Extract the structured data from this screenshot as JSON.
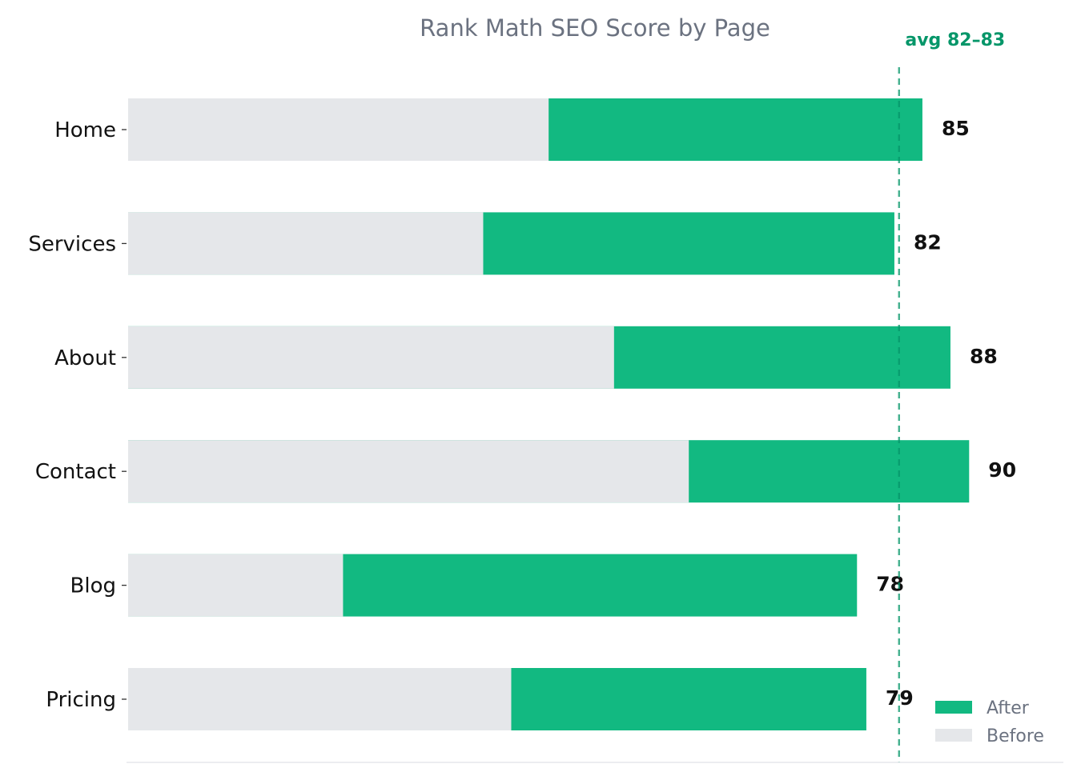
{
  "chart_data": {
    "type": "bar",
    "orientation": "horizontal",
    "stacked_overlay": true,
    "title": "Rank Math SEO Score by Page",
    "categories": [
      "Home",
      "Services",
      "About",
      "Contact",
      "Blog",
      "Pricing"
    ],
    "series": [
      {
        "name": "Before",
        "values": [
          45,
          38,
          52,
          60,
          23,
          41
        ]
      },
      {
        "name": "After",
        "values": [
          85,
          82,
          88,
          90,
          78,
          79
        ]
      }
    ],
    "data_labels": [
      "85",
      "82",
      "88",
      "90",
      "78",
      "79"
    ],
    "reference_line": {
      "value": 82.5,
      "label": "avg 82–83"
    },
    "xlim": [
      0,
      100
    ],
    "grid": false,
    "legend_position": "bottom-right",
    "colors": {
      "After": "#12b981",
      "Before": "#e5e7ea",
      "reference": "#059669",
      "title": "#6b7280"
    }
  }
}
